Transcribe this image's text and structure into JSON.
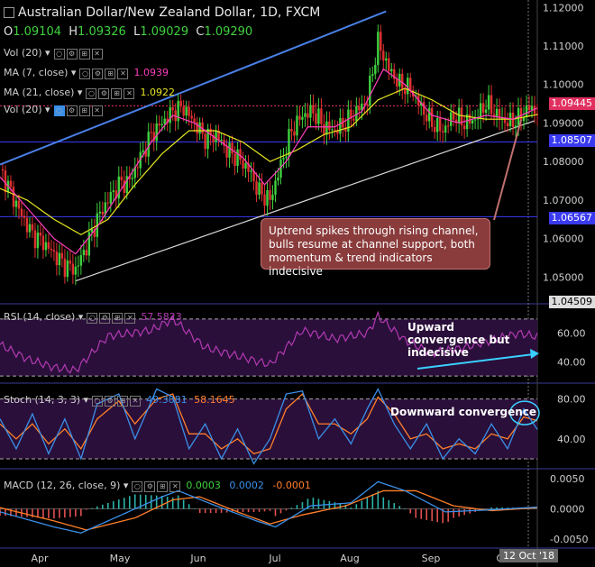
{
  "header": {
    "title": "Australian Dollar/New Zealand Dollar, 1D, FXCM",
    "open_label": "O",
    "open": "1.09104",
    "high_label": "H",
    "high": "1.09326",
    "low_label": "L",
    "low": "1.09029",
    "close_label": "C",
    "close": "1.09290"
  },
  "indicators": {
    "vol1": "Vol (20)",
    "ma7": "MA (7, close)",
    "ma7_value": "1.0939",
    "ma21": "MA (21, close)",
    "ma21_value": "1.0922",
    "vol2": "Vol (20)"
  },
  "annotations": {
    "main": "Uptrend spikes through rising channel, bulls resume at channel support, both momentum & trend indicators indecisive",
    "rsi": "Upward convergence but indecisive",
    "stoch": "Downward convergence"
  },
  "price_tags": {
    "current": "1.09445",
    "level1": "1.08507",
    "level2": "1.06567",
    "bottom": "1.04509"
  },
  "rsi_panel": {
    "label": "RSI (14, close)",
    "value": "57.5823"
  },
  "stoch_panel": {
    "label": "Stoch (14, 3, 3)",
    "k": "49.3081",
    "d": "58.1645"
  },
  "macd_panel": {
    "label": "MACD (12, 26, close, 9)",
    "v1": "0.0003",
    "v2": "0.0002",
    "v3": "-0.0001"
  },
  "date_tag": "12 Oct '18",
  "colors": {
    "up": "#3fd13f",
    "down": "#e03030",
    "ma7": "#ff3fbf",
    "ma21": "#e6e621",
    "channel_upper": "#4a7fe6",
    "channel_lower": "#d8d8d8",
    "rsi": "#b23ab2",
    "stoch_k": "#3a8fe8",
    "stoch_d": "#ff7f2a",
    "macd": "#3a8fe8",
    "signal": "#ff7f2a",
    "level": "#3a3af0"
  },
  "chart_data": [
    {
      "type": "candlestick",
      "title": "Australian Dollar/New Zealand Dollar, 1D, FXCM",
      "xaxis_ticks": [
        "Apr",
        "May",
        "Jun",
        "Jul",
        "Aug",
        "Sep",
        "Oct"
      ],
      "yaxis_ticks": [
        1.12,
        1.11,
        1.1,
        1.09,
        1.08,
        1.07,
        1.06,
        1.05
      ],
      "ylim": [
        1.044,
        1.121
      ],
      "horizontal_levels": [
        1.08507,
        1.06567
      ],
      "channel_upper": [
        [
          0,
          1.0792
        ],
        [
          143,
          1.119
        ]
      ],
      "channel_lower": [
        [
          28,
          1.049
        ],
        [
          198,
          1.0906
        ]
      ],
      "close_path": [
        [
          0,
          1.078
        ],
        [
          4,
          1.072
        ],
        [
          8,
          1.066
        ],
        [
          12,
          1.061
        ],
        [
          16,
          1.059
        ],
        [
          20,
          1.056
        ],
        [
          24,
          1.053
        ],
        [
          28,
          1.052
        ],
        [
          32,
          1.058
        ],
        [
          36,
          1.065
        ],
        [
          40,
          1.07
        ],
        [
          44,
          1.074
        ],
        [
          48,
          1.075
        ],
        [
          52,
          1.081
        ],
        [
          56,
          1.087
        ],
        [
          60,
          1.09
        ],
        [
          64,
          1.093
        ],
        [
          68,
          1.094
        ],
        [
          72,
          1.09
        ],
        [
          76,
          1.086
        ],
        [
          80,
          1.087
        ],
        [
          84,
          1.083
        ],
        [
          88,
          1.081
        ],
        [
          92,
          1.078
        ],
        [
          96,
          1.072
        ],
        [
          100,
          1.07
        ],
        [
          104,
          1.079
        ],
        [
          108,
          1.088
        ],
        [
          112,
          1.092
        ],
        [
          116,
          1.093
        ],
        [
          120,
          1.089
        ],
        [
          124,
          1.088
        ],
        [
          128,
          1.09
        ],
        [
          132,
          1.093
        ],
        [
          136,
          1.096
        ],
        [
          140,
          1.111
        ],
        [
          144,
          1.104
        ],
        [
          148,
          1.1
        ],
        [
          152,
          1.099
        ],
        [
          156,
          1.094
        ],
        [
          160,
          1.09
        ],
        [
          164,
          1.088
        ],
        [
          168,
          1.092
        ],
        [
          172,
          1.09
        ],
        [
          176,
          1.091
        ],
        [
          180,
          1.095
        ],
        [
          184,
          1.092
        ],
        [
          188,
          1.09
        ],
        [
          192,
          1.091
        ],
        [
          196,
          1.094
        ],
        [
          199,
          1.0929
        ]
      ],
      "ma7_path": [
        [
          0,
          1.076
        ],
        [
          10,
          1.068
        ],
        [
          20,
          1.06
        ],
        [
          28,
          1.056
        ],
        [
          36,
          1.063
        ],
        [
          46,
          1.074
        ],
        [
          56,
          1.085
        ],
        [
          64,
          1.092
        ],
        [
          72,
          1.09
        ],
        [
          80,
          1.086
        ],
        [
          90,
          1.081
        ],
        [
          98,
          1.074
        ],
        [
          106,
          1.08
        ],
        [
          114,
          1.089
        ],
        [
          124,
          1.089
        ],
        [
          134,
          1.093
        ],
        [
          142,
          1.104
        ],
        [
          150,
          1.1
        ],
        [
          160,
          1.092
        ],
        [
          170,
          1.09
        ],
        [
          180,
          1.092
        ],
        [
          190,
          1.091
        ],
        [
          199,
          1.0939
        ]
      ],
      "ma21_path": [
        [
          0,
          1.073
        ],
        [
          10,
          1.07
        ],
        [
          20,
          1.065
        ],
        [
          30,
          1.061
        ],
        [
          40,
          1.065
        ],
        [
          50,
          1.074
        ],
        [
          60,
          1.082
        ],
        [
          70,
          1.088
        ],
        [
          80,
          1.088
        ],
        [
          90,
          1.085
        ],
        [
          100,
          1.08
        ],
        [
          110,
          1.083
        ],
        [
          120,
          1.087
        ],
        [
          130,
          1.089
        ],
        [
          140,
          1.096
        ],
        [
          150,
          1.099
        ],
        [
          160,
          1.096
        ],
        [
          170,
          1.092
        ],
        [
          180,
          1.091
        ],
        [
          190,
          1.091
        ],
        [
          199,
          1.0922
        ]
      ]
    },
    {
      "type": "line",
      "title": "RSI (14, close)",
      "yaxis_ticks": [
        60.0,
        40.0
      ],
      "ylim": [
        25,
        80
      ],
      "bands": [
        70,
        30
      ],
      "values": [
        [
          0,
          52
        ],
        [
          10,
          42
        ],
        [
          20,
          36
        ],
        [
          28,
          34
        ],
        [
          40,
          58
        ],
        [
          56,
          62
        ],
        [
          64,
          70
        ],
        [
          76,
          50
        ],
        [
          88,
          44
        ],
        [
          100,
          38
        ],
        [
          112,
          62
        ],
        [
          124,
          56
        ],
        [
          136,
          60
        ],
        [
          140,
          72
        ],
        [
          150,
          55
        ],
        [
          160,
          46
        ],
        [
          172,
          50
        ],
        [
          184,
          56
        ],
        [
          192,
          60
        ],
        [
          199,
          57.58
        ]
      ]
    },
    {
      "type": "line",
      "title": "Stoch (14, 3, 3)",
      "yaxis_ticks": [
        80.0,
        40.0
      ],
      "ylim": [
        10,
        95
      ],
      "bands": [
        80,
        20
      ],
      "k_values": [
        [
          0,
          60
        ],
        [
          6,
          30
        ],
        [
          12,
          65
        ],
        [
          18,
          25
        ],
        [
          24,
          60
        ],
        [
          30,
          20
        ],
        [
          36,
          75
        ],
        [
          44,
          85
        ],
        [
          50,
          40
        ],
        [
          58,
          90
        ],
        [
          64,
          82
        ],
        [
          70,
          30
        ],
        [
          76,
          55
        ],
        [
          82,
          20
        ],
        [
          88,
          50
        ],
        [
          94,
          15
        ],
        [
          100,
          40
        ],
        [
          106,
          85
        ],
        [
          112,
          88
        ],
        [
          118,
          40
        ],
        [
          124,
          60
        ],
        [
          130,
          35
        ],
        [
          136,
          70
        ],
        [
          140,
          90
        ],
        [
          146,
          55
        ],
        [
          152,
          30
        ],
        [
          158,
          55
        ],
        [
          164,
          20
        ],
        [
          170,
          40
        ],
        [
          176,
          25
        ],
        [
          182,
          55
        ],
        [
          188,
          30
        ],
        [
          194,
          70
        ],
        [
          199,
          49.31
        ]
      ],
      "d_values": [
        [
          0,
          55
        ],
        [
          6,
          40
        ],
        [
          12,
          55
        ],
        [
          18,
          35
        ],
        [
          24,
          50
        ],
        [
          30,
          30
        ],
        [
          36,
          60
        ],
        [
          44,
          78
        ],
        [
          50,
          55
        ],
        [
          58,
          80
        ],
        [
          64,
          85
        ],
        [
          70,
          45
        ],
        [
          76,
          45
        ],
        [
          82,
          30
        ],
        [
          88,
          40
        ],
        [
          94,
          25
        ],
        [
          100,
          30
        ],
        [
          106,
          70
        ],
        [
          112,
          85
        ],
        [
          118,
          55
        ],
        [
          124,
          55
        ],
        [
          130,
          45
        ],
        [
          136,
          60
        ],
        [
          140,
          82
        ],
        [
          146,
          65
        ],
        [
          152,
          40
        ],
        [
          158,
          45
        ],
        [
          164,
          30
        ],
        [
          170,
          35
        ],
        [
          176,
          30
        ],
        [
          182,
          45
        ],
        [
          188,
          40
        ],
        [
          194,
          62
        ],
        [
          199,
          58.16
        ]
      ]
    },
    {
      "type": "bar",
      "title": "MACD (12, 26, close, 9)",
      "yaxis_ticks": [
        0.005,
        0.0,
        -0.005
      ],
      "ylim": [
        -0.0065,
        0.0065
      ],
      "macd_values": [
        [
          0,
          -0.0005
        ],
        [
          20,
          -0.003
        ],
        [
          30,
          -0.004
        ],
        [
          45,
          -0.001
        ],
        [
          60,
          0.002
        ],
        [
          66,
          0.003
        ],
        [
          80,
          0.0005
        ],
        [
          95,
          -0.002
        ],
        [
          102,
          -0.003
        ],
        [
          115,
          0.0005
        ],
        [
          130,
          0.001
        ],
        [
          140,
          0.0045
        ],
        [
          150,
          0.003
        ],
        [
          165,
          -0.0005
        ],
        [
          180,
          -0.0002
        ],
        [
          199,
          0.0003
        ]
      ],
      "signal_values": [
        [
          0,
          0.0002
        ],
        [
          20,
          -0.002
        ],
        [
          32,
          -0.0035
        ],
        [
          50,
          -0.0015
        ],
        [
          64,
          0.0015
        ],
        [
          74,
          0.002
        ],
        [
          88,
          -0.0005
        ],
        [
          100,
          -0.0025
        ],
        [
          112,
          -0.001
        ],
        [
          128,
          0.0005
        ],
        [
          142,
          0.003
        ],
        [
          154,
          0.003
        ],
        [
          168,
          0.0005
        ],
        [
          182,
          -0.0003
        ],
        [
          199,
          0.0002
        ]
      ]
    }
  ]
}
